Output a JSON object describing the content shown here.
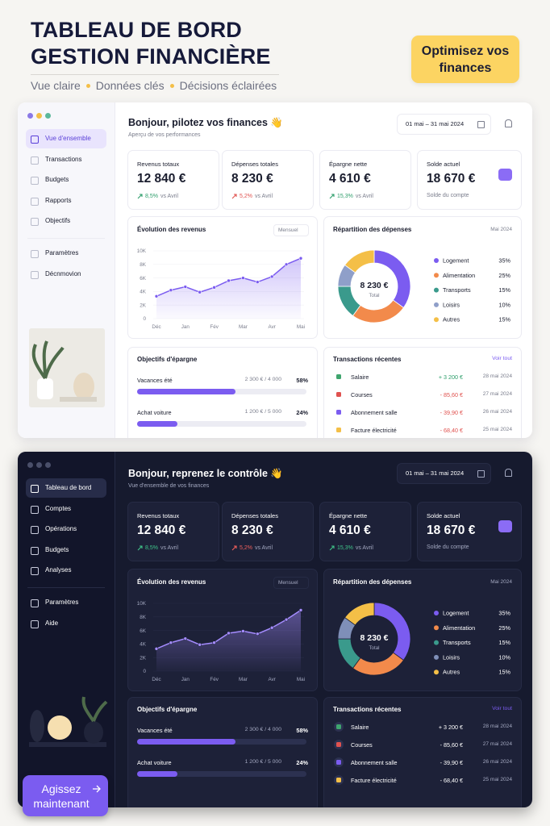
{
  "header": {
    "title": [
      "TABLEAU DE BORD",
      "GESTION FINANCIÈRE"
    ],
    "tagline": [
      "Vue claire",
      "Données clés",
      "Décisions éclairées"
    ],
    "badge": "Optimisez vos finances"
  },
  "dashboards": [
    {
      "nav": [
        "Vue d'ensemble",
        "Transactions",
        "Budgets",
        "Rapports",
        "Objectifs"
      ],
      "nav_secondary": [
        "Paramètres",
        "Décnmovion"
      ],
      "greeting": "Bonjour, pilotez vos finances 👋",
      "subtitle": "Aperçu de vos performances",
      "date_range": "01 mai – 31 mai 2024",
      "kpis": [
        {
          "label": "Revenus totaux",
          "value": "12 840 €",
          "change": "8,5%",
          "change_color": "#2e9e6b",
          "note": "vs Avril"
        },
        {
          "label": "Dépenses totales",
          "value": "8 230 €",
          "change": "5,2%",
          "change_color": "#e0524f",
          "note": "vs Avril"
        },
        {
          "label": "Épargne nette",
          "value": "4 610 €",
          "change": "15,3%",
          "change_color": "#2e9e6b",
          "note": "vs Avril"
        },
        {
          "label": "Solde actuel",
          "value": "18 670 €",
          "note": "Solde du compte"
        }
      ],
      "revenue_chart": {
        "type": "line",
        "title": "Évolution des revenus",
        "period": "Mensuel",
        "categories": [
          "Déc",
          null,
          "Jan",
          null,
          "Fév",
          null,
          "Mar",
          null,
          "Avr",
          null,
          "Mai"
        ],
        "values": [
          3300,
          4200,
          4700,
          3900,
          4600,
          5600,
          6000,
          5400,
          6200,
          8000,
          8900
        ],
        "color": "#7b5cf0",
        "ylim": [
          0,
          10000
        ],
        "yticks": [
          0,
          {
            "value": 2000,
            "label": "2K"
          },
          {
            "value": 4000,
            "label": "4K"
          },
          {
            "value": 6000,
            "label": "6K"
          },
          {
            "value": 8000,
            "label": "8K"
          },
          {
            "value": 10000,
            "label": "10K"
          }
        ]
      },
      "expense_chart": {
        "type": "pie",
        "title": "Répartition des dépenses",
        "period": "Mai 2024",
        "total": "8 230 €",
        "total_label": "Total",
        "categories": [
          "Logement",
          "Alimentation",
          "Transports",
          "Loisirs",
          "Autres"
        ],
        "values": [
          35,
          25,
          15,
          10,
          15
        ],
        "value_labels": [
          "35%",
          "25%",
          "15%",
          "10%",
          "15%"
        ],
        "colors": [
          "#7b5cf0",
          "#f28a4b",
          "#3a9a8c",
          "#8f9fc9",
          "#f4bf47"
        ]
      },
      "savings": {
        "title": "Objectifs d'épargne",
        "goals": [
          {
            "name": "Vacances été",
            "amount": "2 300 € / 4 000",
            "percent": 58,
            "percent_label": "58%"
          },
          {
            "name": "Achat voiture",
            "amount": "1 200 € / 5 000",
            "percent": 24,
            "percent_label": "24%"
          }
        ]
      },
      "transactions": {
        "title": "Transactions récentes",
        "link": "Voir tout",
        "rows": [
          {
            "name": "Salaire",
            "amount": "+ 3 200 €",
            "date": "28 mai 2024",
            "color": "#2e9e6b"
          },
          {
            "name": "Courses",
            "amount": "- 85,60 €",
            "date": "27 mai 2024",
            "color": "#e0524f"
          },
          {
            "name": "Abonnement salle",
            "amount": "- 39,90 €",
            "date": "26 mai 2024",
            "color": "#e0524f"
          },
          {
            "name": "Facture électricité",
            "amount": "- 68,40 €",
            "date": "25 mai 2024",
            "color": "#e0524f"
          }
        ]
      }
    },
    {
      "nav": [
        "Tableau de bord",
        "Comptes",
        "Opérations",
        "Budgets",
        "Analyses"
      ],
      "nav_secondary": [
        "Paramètres",
        "Aide"
      ],
      "greeting": "Bonjour, reprenez le contrôle 👋",
      "subtitle": "Vue d'ensemble de vos finances",
      "date_range": "01 mai – 31 mai 2024",
      "kpis": [
        {
          "label": "Revenus totaux",
          "value": "12 840 €",
          "change": "8,5%",
          "change_color": "#3fc489",
          "note": "vs Avril"
        },
        {
          "label": "Dépenses totales",
          "value": "8 230 €",
          "change": "5,2%",
          "change_color": "#f0605c",
          "note": "vs Avril"
        },
        {
          "label": "Épargne nette",
          "value": "4 610 €",
          "change": "15,3%",
          "change_color": "#3fc489",
          "note": "vs Avril"
        },
        {
          "label": "Solde actuel",
          "value": "18 670 €",
          "note": "Solde du compte"
        }
      ],
      "revenue_chart": {
        "type": "line",
        "title": "Évolution des revenus",
        "period": "Mensuel",
        "categories": [
          "Déc",
          null,
          "Jan",
          null,
          "Fév",
          null,
          "Mar",
          null,
          "Avr",
          null,
          "Mai"
        ],
        "values": [
          3300,
          4200,
          4800,
          3900,
          4200,
          5600,
          5900,
          5500,
          6400,
          7600,
          9000
        ],
        "color": "#a58cff",
        "ylim": [
          0,
          10000
        ],
        "yticks": [
          0,
          {
            "value": 2000,
            "label": "2K"
          },
          {
            "value": 4000,
            "label": "4K"
          },
          {
            "value": 6000,
            "label": "6K"
          },
          {
            "value": 8000,
            "label": "8K"
          },
          {
            "value": 10000,
            "label": "10K"
          }
        ]
      },
      "expense_chart": {
        "type": "pie",
        "title": "Répartition des dépenses",
        "period": "Mai 2024",
        "total": "8 230 €",
        "total_label": "Total",
        "categories": [
          "Logement",
          "Alimentation",
          "Transports",
          "Loisirs",
          "Autres"
        ],
        "values": [
          35,
          25,
          15,
          10,
          15
        ],
        "value_labels": [
          "35%",
          "25%",
          "15%",
          "10%",
          "15%"
        ],
        "colors": [
          "#7b5cf0",
          "#f28a4b",
          "#3a9a8c",
          "#7f8fb8",
          "#f4bf47"
        ]
      },
      "savings": {
        "title": "Objectifs d'épargne",
        "goals": [
          {
            "name": "Vacances été",
            "amount": "2 300 € / 4 000",
            "percent": 58,
            "percent_label": "58%"
          },
          {
            "name": "Achat voiture",
            "amount": "1 200 € / 5 000",
            "percent": 24,
            "percent_label": "24%"
          }
        ]
      },
      "transactions": {
        "title": "Transactions récentes",
        "link": "Voir tout",
        "rows": [
          {
            "name": "Salaire",
            "amount": "+ 3 200 €",
            "date": "28 mai 2024",
            "color": "#ffffff"
          },
          {
            "name": "Courses",
            "amount": "- 85,60 €",
            "date": "27 mai 2024",
            "color": "#ffffff"
          },
          {
            "name": "Abonnement salle",
            "amount": "- 39,90 €",
            "date": "26 mai 2024",
            "color": "#ffffff"
          },
          {
            "name": "Facture électricité",
            "amount": "- 68,40 €",
            "date": "25 mai 2024",
            "color": "#ffffff"
          }
        ]
      }
    }
  ],
  "cta": "Agissez maintenant"
}
